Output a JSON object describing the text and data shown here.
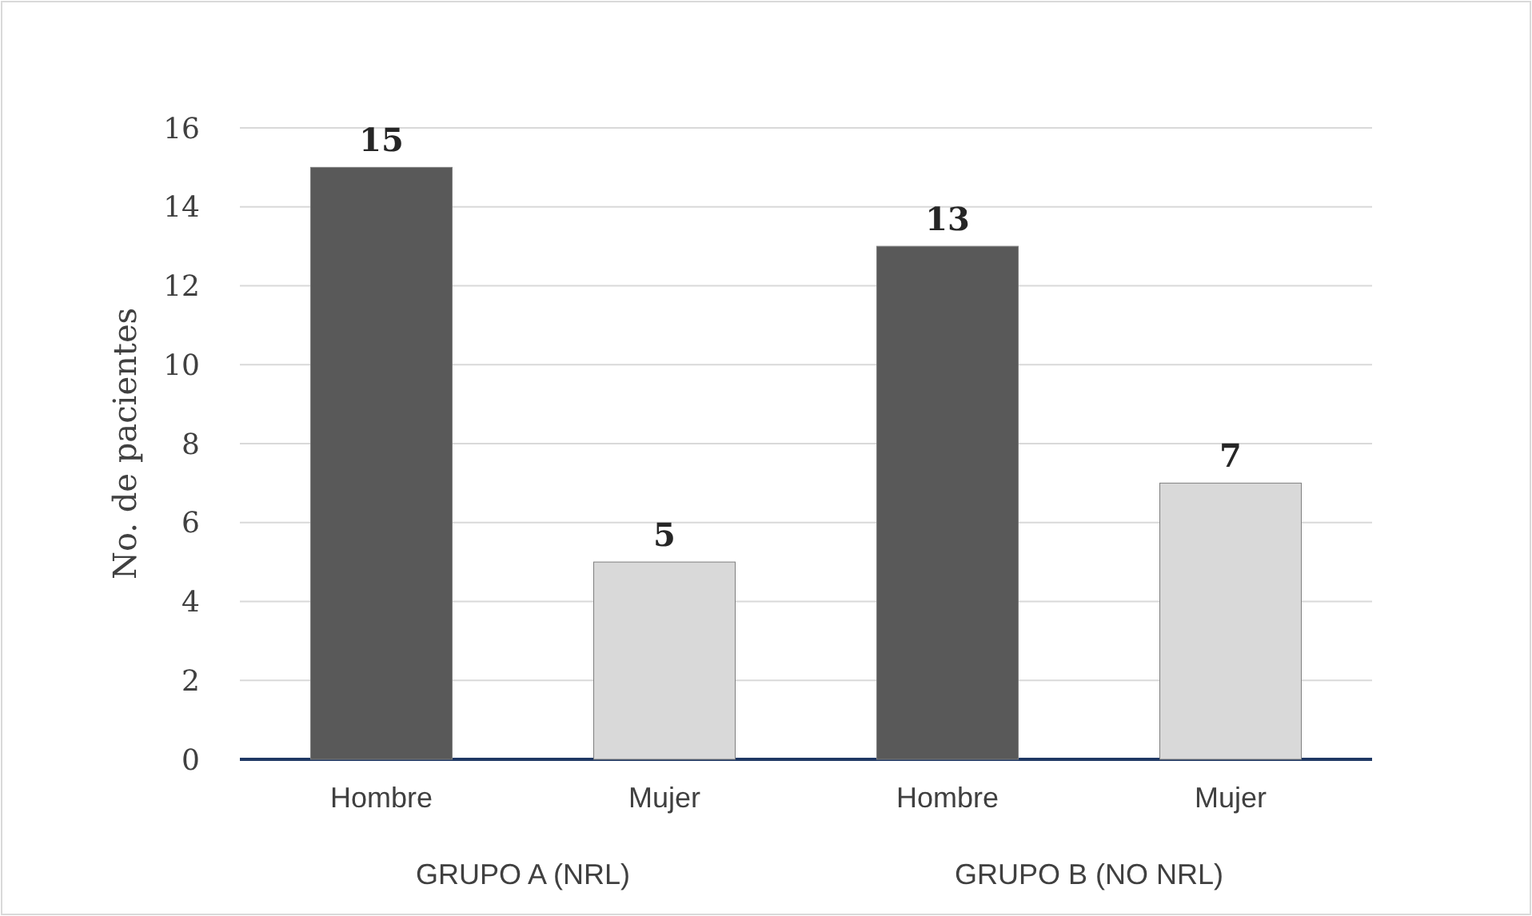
{
  "chart_data": {
    "type": "bar",
    "ylabel": "No. de pacientes",
    "categories": [
      "Hombre",
      "Mujer",
      "Hombre",
      "Mujer"
    ],
    "values": [
      15,
      5,
      13,
      7
    ],
    "colors": [
      "#595959",
      "#d9d9d9",
      "#595959",
      "#d9d9d9"
    ],
    "ylim": [
      0,
      16
    ],
    "yticks": [
      0,
      2,
      4,
      6,
      8,
      10,
      12,
      14,
      16
    ],
    "grid": "y",
    "data_labels": true,
    "annotations": [
      "GRUPO A (NRL)",
      "GRUPO B (NO NRL)"
    ]
  }
}
